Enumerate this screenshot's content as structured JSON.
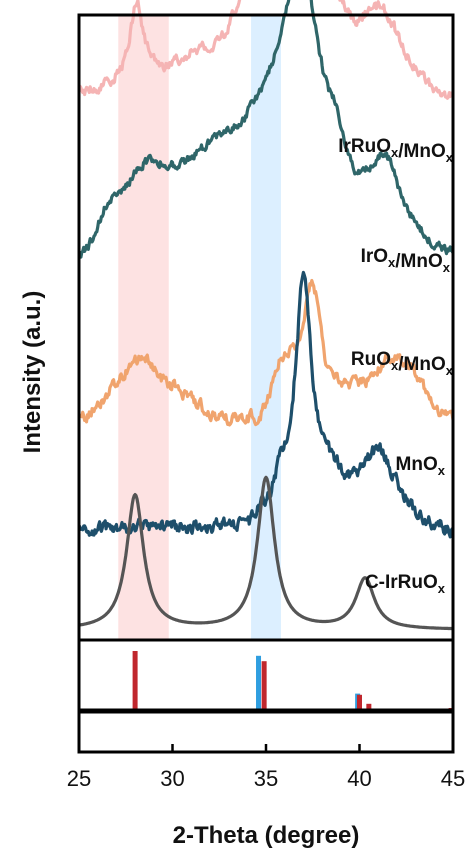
{
  "chart_data": {
    "type": "line",
    "xlabel": "2-Theta (degree)",
    "ylabel": "Intensity (a.u.)",
    "xlim": [
      25,
      45
    ],
    "x_ticks": [
      {
        "value": 25,
        "label": "25"
      },
      {
        "value": 30,
        "label": "30"
      },
      {
        "value": 35,
        "label": "35"
      },
      {
        "value": 40,
        "label": "40"
      },
      {
        "value": 45,
        "label": "45"
      }
    ],
    "y_ticks": "none",
    "grid": false,
    "highlight_bands": [
      {
        "x_range": [
          27.1,
          29.8
        ],
        "color": "#fde2e2"
      },
      {
        "x_range": [
          34.2,
          35.8
        ],
        "color": "#dcefff"
      }
    ],
    "series": [
      {
        "name": "IrRuOx/MnOx",
        "label": {
          "main": "IrRuO",
          "parts": [
            [
              "IrRuO",
              "x"
            ],
            [
              "/MnO",
              "x"
            ]
          ]
        },
        "color": "#f5b4b4",
        "baseline": 0.955,
        "noise": 0.018,
        "seed": 11,
        "background": [
          [
            25,
            0.0
          ],
          [
            28,
            0.02
          ],
          [
            32,
            0.07
          ],
          [
            35,
            0.16
          ],
          [
            37,
            0.2
          ],
          [
            40,
            0.08
          ],
          [
            45,
            -0.01
          ]
        ],
        "peaks": [
          {
            "center": 28.1,
            "height": 0.14,
            "fwhm": 0.9
          },
          {
            "center": 34.8,
            "height": 0.14,
            "fwhm": 1.5
          },
          {
            "center": 37.0,
            "height": 0.28,
            "fwhm": 1.5
          },
          {
            "center": 41.2,
            "height": 0.08,
            "fwhm": 2.3
          }
        ]
      },
      {
        "name": "IrOx/MnOx",
        "label": {
          "parts": [
            [
              "IrO",
              "x"
            ],
            [
              "/MnO",
              "x"
            ]
          ]
        },
        "color": "#2f6669",
        "baseline": 0.665,
        "noise": 0.015,
        "seed": 23,
        "background": [
          [
            25,
            0.0
          ],
          [
            27,
            0.1
          ],
          [
            30,
            0.15
          ],
          [
            33,
            0.21
          ],
          [
            36,
            0.28
          ],
          [
            38.5,
            0.21
          ],
          [
            40,
            0.1
          ],
          [
            45,
            0.0
          ]
        ],
        "peaks": [
          {
            "center": 28.4,
            "height": 0.04,
            "fwhm": 2.0
          },
          {
            "center": 36.9,
            "height": 0.28,
            "fwhm": 1.9
          },
          {
            "center": 41.4,
            "height": 0.09,
            "fwhm": 1.8
          }
        ]
      },
      {
        "name": "RuOx/MnOx",
        "label": {
          "parts": [
            [
              "RuO",
              "x"
            ],
            [
              "/MnO",
              "x"
            ]
          ]
        },
        "color": "#f0a46e",
        "baseline": 0.372,
        "noise": 0.02,
        "seed": 37,
        "background": [
          [
            25,
            0.0
          ],
          [
            27.5,
            0.06
          ],
          [
            30,
            0.04
          ],
          [
            33,
            0.0
          ],
          [
            34.5,
            0.0
          ],
          [
            36,
            0.1
          ],
          [
            38,
            0.04
          ],
          [
            40,
            0.05
          ],
          [
            42.5,
            0.07
          ],
          [
            45,
            0.0
          ]
        ],
        "peaks": [
          {
            "center": 28.6,
            "height": 0.06,
            "fwhm": 2.0
          },
          {
            "center": 37.5,
            "height": 0.2,
            "fwhm": 1.0
          },
          {
            "center": 41.8,
            "height": 0.05,
            "fwhm": 2.0
          }
        ]
      },
      {
        "name": "MnOx",
        "label": {
          "parts": [
            [
              "MnO",
              "x"
            ]
          ]
        },
        "color": "#1e4f6b",
        "baseline": 0.182,
        "noise": 0.022,
        "seed": 53,
        "background": [
          [
            25,
            0.0
          ],
          [
            34,
            0.0
          ],
          [
            35,
            0.03
          ],
          [
            36,
            0.09
          ],
          [
            38,
            0.1
          ],
          [
            40,
            0.04
          ],
          [
            45,
            -0.01
          ]
        ],
        "peaks": [
          {
            "center": 37.0,
            "height": 0.36,
            "fwhm": 0.9
          },
          {
            "center": 41.0,
            "height": 0.1,
            "fwhm": 2.2
          }
        ]
      },
      {
        "name": "C-IrRuOx",
        "label": {
          "parts": [
            [
              "C-IrRuO",
              "x"
            ]
          ]
        },
        "color": "#555555",
        "baseline": 0.0,
        "noise": 0.0,
        "seed": 0,
        "background": [
          [
            25,
            0.0
          ],
          [
            45,
            0.0
          ]
        ],
        "peaks": [
          {
            "center": 28.0,
            "height": 0.24,
            "fwhm": 1.1
          },
          {
            "center": 35.0,
            "height": 0.27,
            "fwhm": 1.1
          },
          {
            "center": 40.3,
            "height": 0.09,
            "fwhm": 1.2
          }
        ]
      }
    ],
    "reference_lines": [
      {
        "x": 28.0,
        "height": 1.0,
        "color": "#c0272d"
      },
      {
        "x": 34.6,
        "height": 0.92,
        "color": "#2f9ee0"
      },
      {
        "x": 34.9,
        "height": 0.83,
        "color": "#c0272d"
      },
      {
        "x": 39.9,
        "height": 0.29,
        "color": "#2f9ee0"
      },
      {
        "x": 40.0,
        "height": 0.27,
        "color": "#c0272d"
      },
      {
        "x": 40.5,
        "height": 0.12,
        "color": "#c0272d"
      },
      {
        "x": 44.9,
        "height": 0.05,
        "color": "#c0272d"
      }
    ]
  }
}
